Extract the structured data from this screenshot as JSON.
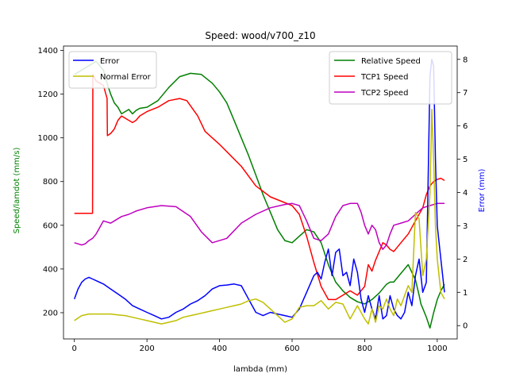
{
  "chart_data": {
    "type": "line",
    "title": "Speed: wood/v700_z10",
    "xlabel": "lambda (mm)",
    "ylabel": "Speed/lamdot (mm/s)",
    "ylabel2": "Error (mm)",
    "xlim": [
      -30,
      1055
    ],
    "ylim": [
      80,
      1420
    ],
    "ylim2": [
      -0.4,
      8.4
    ],
    "xticks": [
      0,
      200,
      400,
      600,
      800,
      1000
    ],
    "yticks": [
      200,
      400,
      600,
      800,
      1000,
      1200,
      1400
    ],
    "yticks2": [
      0,
      1,
      2,
      3,
      4,
      5,
      6,
      7,
      8
    ],
    "grid": false,
    "legend_left": {
      "placement": "upper-left",
      "entries": [
        "Error",
        "Normal Error"
      ]
    },
    "legend_right": {
      "placement": "upper-right",
      "entries": [
        "Relative Speed",
        "TCP1 Speed",
        "TCP2 Speed"
      ]
    },
    "series": [
      {
        "name": "Relative Speed",
        "axis": "left",
        "color": "#008000",
        "x": [
          0,
          20,
          40,
          60,
          80,
          90,
          100,
          110,
          120,
          130,
          140,
          150,
          160,
          170,
          180,
          200,
          230,
          260,
          290,
          320,
          350,
          380,
          400,
          420,
          440,
          460,
          480,
          500,
          520,
          540,
          560,
          580,
          600,
          620,
          640,
          660,
          680,
          700,
          720,
          740,
          760,
          780,
          800,
          820,
          840,
          860,
          870,
          880,
          900,
          920,
          940,
          950,
          955,
          960,
          970,
          980,
          990,
          1000,
          1010,
          1020
        ],
        "y": [
          1290,
          1310,
          1330,
          1350,
          1310,
          1250,
          1200,
          1160,
          1140,
          1110,
          1120,
          1130,
          1110,
          1125,
          1135,
          1140,
          1170,
          1230,
          1280,
          1295,
          1290,
          1250,
          1210,
          1160,
          1080,
          1000,
          920,
          830,
          740,
          660,
          580,
          530,
          520,
          550,
          580,
          570,
          520,
          420,
          340,
          300,
          270,
          250,
          240,
          260,
          290,
          330,
          340,
          340,
          380,
          420,
          350,
          280,
          240,
          220,
          180,
          130,
          200,
          260,
          300,
          330
        ]
      },
      {
        "name": "TCP1 Speed",
        "axis": "left",
        "color": "#ff0000",
        "x": [
          0,
          20,
          40,
          50,
          51,
          60,
          70,
          80,
          90,
          91,
          100,
          110,
          120,
          130,
          140,
          150,
          160,
          170,
          180,
          200,
          230,
          260,
          290,
          310,
          340,
          360,
          400,
          430,
          460,
          500,
          540,
          570,
          600,
          620,
          640,
          660,
          680,
          700,
          720,
          740,
          760,
          780,
          800,
          810,
          820,
          830,
          840,
          850,
          860,
          870,
          880,
          890,
          900,
          920,
          940,
          960,
          970,
          980,
          990,
          1000,
          1010,
          1020
        ],
        "y": [
          655,
          655,
          655,
          655,
          1290,
          1260,
          1250,
          1240,
          1180,
          1010,
          1020,
          1040,
          1080,
          1100,
          1090,
          1080,
          1070,
          1080,
          1100,
          1120,
          1140,
          1170,
          1180,
          1170,
          1100,
          1030,
          970,
          920,
          870,
          780,
          730,
          710,
          690,
          650,
          550,
          430,
          320,
          260,
          260,
          280,
          300,
          280,
          320,
          420,
          390,
          440,
          480,
          520,
          510,
          490,
          480,
          500,
          520,
          560,
          620,
          680,
          740,
          780,
          800,
          810,
          815,
          805
        ]
      },
      {
        "name": "TCP2 Speed",
        "axis": "left",
        "color": "#bf00bf",
        "x": [
          0,
          10,
          20,
          30,
          40,
          50,
          60,
          80,
          100,
          110,
          130,
          150,
          170,
          200,
          240,
          280,
          320,
          350,
          380,
          420,
          460,
          500,
          540,
          580,
          600,
          620,
          640,
          660,
          680,
          700,
          720,
          740,
          760,
          780,
          790,
          800,
          810,
          820,
          830,
          840,
          850,
          860,
          870,
          880,
          900,
          920,
          940,
          960,
          980,
          1000,
          1020
        ],
        "y": [
          520,
          515,
          510,
          515,
          530,
          540,
          560,
          620,
          610,
          620,
          640,
          650,
          665,
          680,
          690,
          685,
          640,
          570,
          520,
          540,
          610,
          650,
          680,
          695,
          700,
          690,
          620,
          540,
          530,
          560,
          640,
          690,
          700,
          700,
          660,
          600,
          560,
          600,
          580,
          520,
          490,
          510,
          560,
          600,
          610,
          620,
          650,
          680,
          690,
          700,
          700
        ]
      },
      {
        "name": "Error",
        "axis": "right",
        "color": "#0000ff",
        "x": [
          0,
          10,
          20,
          30,
          40,
          50,
          60,
          80,
          100,
          120,
          140,
          160,
          180,
          200,
          220,
          240,
          260,
          280,
          300,
          320,
          340,
          360,
          380,
          400,
          420,
          440,
          460,
          480,
          500,
          520,
          540,
          560,
          580,
          600,
          620,
          640,
          660,
          670,
          680,
          690,
          700,
          710,
          720,
          730,
          740,
          750,
          760,
          770,
          780,
          790,
          800,
          810,
          820,
          830,
          840,
          850,
          860,
          870,
          880,
          890,
          900,
          910,
          920,
          930,
          940,
          950,
          960,
          970,
          980,
          985,
          990,
          995,
          1000,
          1010,
          1020
        ],
        "y": [
          0.8,
          1.1,
          1.3,
          1.4,
          1.45,
          1.4,
          1.35,
          1.25,
          1.1,
          0.95,
          0.8,
          0.6,
          0.5,
          0.4,
          0.3,
          0.2,
          0.25,
          0.4,
          0.5,
          0.65,
          0.75,
          0.9,
          1.1,
          1.2,
          1.22,
          1.25,
          1.2,
          0.8,
          0.4,
          0.3,
          0.4,
          0.35,
          0.3,
          0.25,
          0.5,
          1.0,
          1.5,
          1.6,
          1.4,
          1.9,
          2.3,
          1.5,
          2.2,
          2.3,
          1.5,
          1.6,
          1.2,
          2.0,
          1.6,
          0.8,
          0.4,
          0.9,
          0.5,
          0.2,
          0.9,
          0.2,
          0.3,
          0.9,
          0.5,
          0.3,
          0.2,
          0.4,
          1.0,
          0.6,
          1.5,
          2.0,
          1.0,
          1.3,
          7.5,
          8.0,
          7.8,
          5.0,
          3.0,
          2.0,
          1.0
        ]
      },
      {
        "name": "Normal Error",
        "axis": "right",
        "color": "#bfbf00",
        "x": [
          0,
          20,
          40,
          60,
          80,
          100,
          120,
          140,
          160,
          180,
          200,
          220,
          240,
          260,
          280,
          300,
          320,
          340,
          360,
          380,
          400,
          420,
          440,
          460,
          480,
          500,
          520,
          540,
          560,
          580,
          600,
          620,
          640,
          660,
          680,
          700,
          720,
          740,
          760,
          780,
          800,
          810,
          820,
          830,
          840,
          850,
          860,
          870,
          880,
          890,
          900,
          910,
          920,
          930,
          940,
          950,
          960,
          970,
          980,
          985,
          990,
          995,
          1000,
          1010,
          1020
        ],
        "y": [
          0.15,
          0.3,
          0.35,
          0.35,
          0.35,
          0.35,
          0.32,
          0.3,
          0.25,
          0.2,
          0.15,
          0.1,
          0.05,
          0.1,
          0.15,
          0.25,
          0.3,
          0.35,
          0.4,
          0.45,
          0.5,
          0.55,
          0.6,
          0.65,
          0.75,
          0.8,
          0.7,
          0.5,
          0.3,
          0.1,
          0.2,
          0.55,
          0.6,
          0.6,
          0.75,
          0.5,
          0.7,
          0.65,
          0.2,
          0.6,
          0.2,
          0.05,
          0.5,
          0.1,
          0.6,
          0.5,
          0.8,
          0.5,
          0.3,
          0.8,
          0.6,
          0.9,
          1.2,
          1.0,
          3.4,
          3.2,
          1.5,
          2.0,
          4.0,
          6.5,
          5.0,
          3.0,
          2.0,
          1.0,
          0.8
        ]
      }
    ]
  }
}
